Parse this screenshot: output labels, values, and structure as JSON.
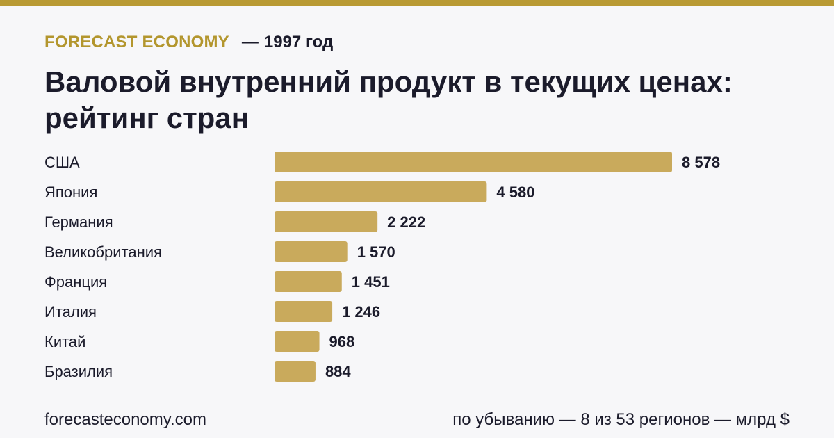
{
  "brand": "FORECAST ECONOMY",
  "separator": "—",
  "year_label": "1997 год",
  "title": "Валовой внутренний продукт в текущих ценах: рейтинг стран",
  "footer": {
    "site": "forecasteconomy.com",
    "note": "по убыванию — 8 из 53 регионов — млрд $"
  },
  "colors": {
    "accent": "#b99a34",
    "bar": "#c9aa5c",
    "background": "#f7f7f9",
    "text": "#1b1b2b"
  },
  "chart_data": {
    "type": "bar",
    "orientation": "horizontal",
    "title": "Валовой внутренний продукт в текущих ценах: рейтинг стран",
    "unit": "млрд $",
    "categories": [
      "США",
      "Япония",
      "Германия",
      "Великобритания",
      "Франция",
      "Италия",
      "Китай",
      "Бразилия"
    ],
    "values": [
      8578,
      4580,
      2222,
      1570,
      1451,
      1246,
      968,
      884
    ],
    "value_labels": [
      "8 578",
      "4 580",
      "2 222",
      "1 570",
      "1 451",
      "1 246",
      "968",
      "884"
    ],
    "xlim": [
      0,
      8578
    ],
    "grid": false,
    "legend": "none"
  }
}
